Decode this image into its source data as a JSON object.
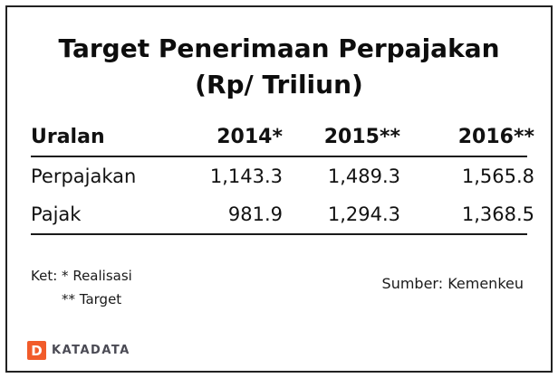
{
  "title": {
    "line1": "Target Penerimaan Perpajakan",
    "line2": "(Rp/ Triliun)"
  },
  "table": {
    "headers": [
      "Uralan",
      "2014*",
      "2015**",
      "2016**"
    ],
    "rows": [
      {
        "label": "Perpajakan",
        "values": [
          "1,143.3",
          "1,489.3",
          "1,565.8"
        ]
      },
      {
        "label": "Pajak",
        "values": [
          "981.9",
          "1,294.3",
          "1,368.5"
        ]
      }
    ]
  },
  "footer": {
    "note_label": "Ket:",
    "note1": "* Realisasi",
    "note2": "** Target",
    "source": "Sumber: Kemenkeu"
  },
  "logo": {
    "letter": "D",
    "text": "KATADATA"
  },
  "colors": {
    "logo_orange": "#F15B2A",
    "logo_text": "#4a4a54",
    "border": "#222222"
  },
  "chart_data": {
    "type": "table",
    "title": "Target Penerimaan Perpajakan (Rp/ Triliun)",
    "row_header": "Uralan",
    "categories": [
      "2014*",
      "2015**",
      "2016**"
    ],
    "series": [
      {
        "name": "Perpajakan",
        "values": [
          1143.3,
          1489.3,
          1565.8
        ]
      },
      {
        "name": "Pajak",
        "values": [
          981.9,
          1294.3,
          1368.5
        ]
      }
    ],
    "notes": [
      "* Realisasi",
      "** Target"
    ],
    "source": "Sumber: Kemenkeu"
  }
}
